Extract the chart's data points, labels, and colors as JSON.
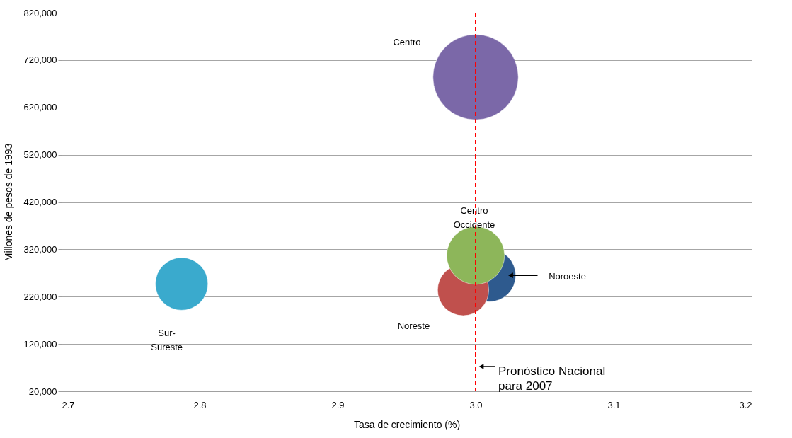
{
  "chart_data": {
    "type": "bubble",
    "xlabel": "Tasa de crecimiento (%)",
    "ylabel": "Millones de pesos de 1993",
    "series": [
      {
        "name": "Centro",
        "color": "#7b68a8",
        "x": [
          3.0
        ],
        "values": [
          684000
        ],
        "sizes": [
          1
        ]
      },
      {
        "name": "Sur-Sureste",
        "color": "#3aaacd",
        "x": [
          2.787
        ],
        "values": [
          247000
        ],
        "sizes": [
          0.38
        ]
      },
      {
        "name": "Noroeste",
        "color": "#2e5a8e",
        "x": [
          3.01
        ],
        "values": [
          265000
        ],
        "sizes": [
          0.38
        ]
      },
      {
        "name": "Noreste",
        "color": "#c0504d",
        "x": [
          2.991
        ],
        "values": [
          234000
        ],
        "sizes": [
          0.36
        ]
      },
      {
        "name": "Centro Occidente",
        "color": "#8db65a",
        "x": [
          3.0
        ],
        "values": [
          307000
        ],
        "sizes": [
          0.46
        ]
      }
    ],
    "xlim": [
      2.7,
      3.2
    ],
    "xticks": [
      2.7,
      2.8,
      2.9,
      {
        "value": 3.0,
        "label": "3.0"
      },
      3.1,
      3.2
    ],
    "ylim": [
      20000,
      820000
    ],
    "yticks": [
      {
        "value": 20000,
        "label": "20,000"
      },
      {
        "value": 120000,
        "label": "120,000"
      },
      {
        "value": 220000,
        "label": "220,000"
      },
      {
        "value": 320000,
        "label": "320,000"
      },
      {
        "value": 420000,
        "label": "420,000"
      },
      {
        "value": 520000,
        "label": "520,000"
      },
      {
        "value": 620000,
        "label": "620,000"
      },
      {
        "value": 720000,
        "label": "720,000"
      },
      {
        "value": 820000,
        "label": "820,000"
      }
    ],
    "grid": "y",
    "ref_lines": [
      {
        "axis": "x",
        "value": 3.0,
        "color": "#ff0000",
        "line_style": "dashed",
        "label": "Pronóstico Nacional para 2007"
      }
    ]
  }
}
